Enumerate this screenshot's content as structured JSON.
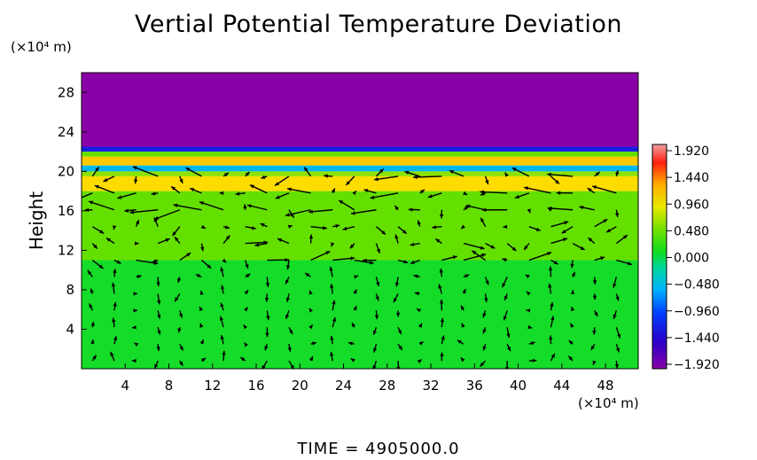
{
  "chart_data": {
    "type": "heatmap",
    "title": "Vertial Potential Temperature Deviation",
    "ylabel": "Height",
    "x_unit": "(×10⁴ m)",
    "y_unit": "(×10⁴ m)",
    "x_ticks": [
      "4",
      "8",
      "12",
      "16",
      "20",
      "24",
      "28",
      "32",
      "36",
      "40",
      "44",
      "48"
    ],
    "y_ticks": [
      "4",
      "8",
      "12",
      "16",
      "20",
      "24",
      "28"
    ],
    "xlim": [
      0,
      51
    ],
    "ylim": [
      0,
      30
    ],
    "colorbar": {
      "ticks": [
        "1.920",
        "1.440",
        "0.960",
        "0.480",
        "0.000",
        "−0.480",
        "−0.960",
        "−1.440",
        "−1.920"
      ],
      "range": [
        -1.92,
        1.92
      ]
    },
    "bands": [
      {
        "y0": 0,
        "y1": 11.0,
        "value": 0.08
      },
      {
        "y0": 11.0,
        "y1": 18.0,
        "value": 0.3
      },
      {
        "y0": 18.0,
        "y1": 19.5,
        "value": 0.9
      },
      {
        "y0": 19.5,
        "y1": 20.0,
        "value": 0.4
      },
      {
        "y0": 20.0,
        "y1": 20.6,
        "value": -0.4
      },
      {
        "y0": 20.6,
        "y1": 21.5,
        "value": 1.0
      },
      {
        "y0": 21.5,
        "y1": 22.0,
        "value": 0.3
      },
      {
        "y0": 22.0,
        "y1": 22.5,
        "value": -1.2
      },
      {
        "y0": 22.5,
        "y1": 30.0,
        "value": -1.92
      }
    ],
    "vectors": "wind field arrows over height 0–21 (u, w components shown as arrows)"
  },
  "footer": {
    "time_label": "TIME  =  4905000.0"
  }
}
